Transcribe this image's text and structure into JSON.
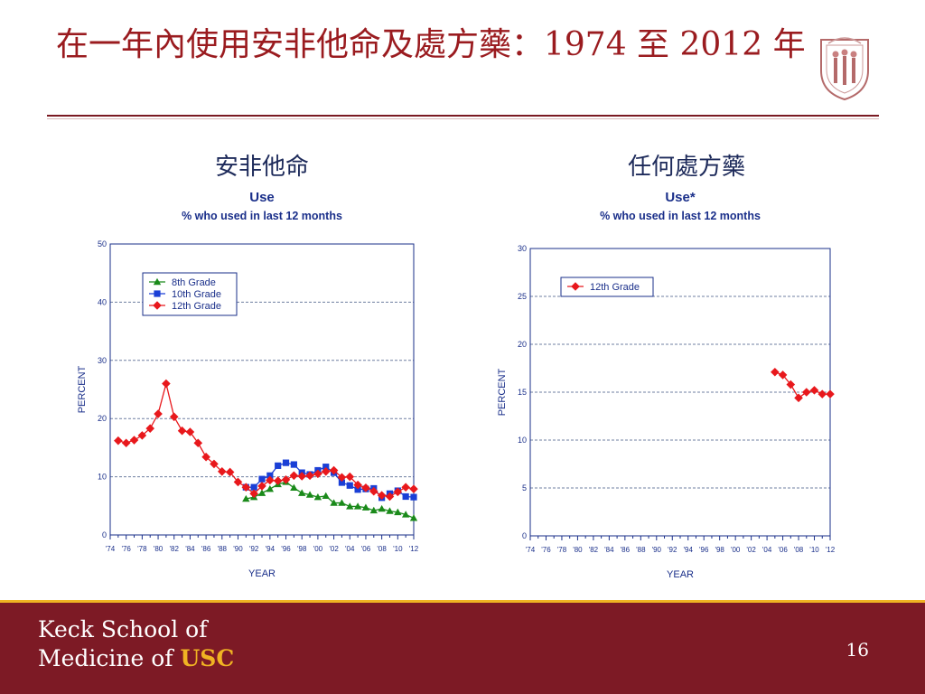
{
  "slide": {
    "title": "在一年內使用安非他命及處方藥：1974 至 2012 年",
    "page_number": "16"
  },
  "footer": {
    "line1": "Keck School of",
    "line2_prefix": "Medicine of ",
    "line2_highlight": "USC"
  },
  "colors": {
    "title": "#9a1b1f",
    "footer_bg": "#7d1a25",
    "footer_accent": "#f0b323",
    "grade8": "#1a8a1a",
    "grade10": "#1a3fd6",
    "grade12": "#e8181c"
  },
  "panels": [
    {
      "heading": "安非他命",
      "icon": "university-seal-icon"
    },
    {
      "heading": "任何處方藥"
    }
  ],
  "chart_data": [
    {
      "type": "line",
      "title": "Use",
      "subtitle": "% who used in last 12 months",
      "xlabel": "YEAR",
      "ylabel": "PERCENT",
      "ylim": [
        0,
        50
      ],
      "yticks": [
        0,
        10,
        20,
        30,
        40,
        50
      ],
      "xlim": [
        1974,
        2012
      ],
      "xtick_labels": [
        "'74",
        "'76",
        "'78",
        "'80",
        "'82",
        "'84",
        "'86",
        "'88",
        "'90",
        "'92",
        "'94",
        "'96",
        "'98",
        "'00",
        "'02",
        "'04",
        "'06",
        "'08",
        "'10",
        "'12"
      ],
      "grid": true,
      "legend_position": "top-left",
      "series": [
        {
          "name": "8th Grade",
          "marker": "triangle",
          "color": "#1a8a1a",
          "x": [
            1991,
            1992,
            1993,
            1994,
            1995,
            1996,
            1997,
            1998,
            1999,
            2000,
            2001,
            2002,
            2003,
            2004,
            2005,
            2006,
            2007,
            2008,
            2009,
            2010,
            2011,
            2012
          ],
          "values": [
            6.2,
            6.5,
            7.2,
            7.9,
            8.7,
            9.1,
            8.1,
            7.2,
            6.9,
            6.5,
            6.7,
            5.5,
            5.5,
            4.9,
            4.9,
            4.7,
            4.2,
            4.5,
            4.1,
            3.9,
            3.5,
            2.9
          ]
        },
        {
          "name": "10th Grade",
          "marker": "square",
          "color": "#1a3fd6",
          "x": [
            1991,
            1992,
            1993,
            1994,
            1995,
            1996,
            1997,
            1998,
            1999,
            2000,
            2001,
            2002,
            2003,
            2004,
            2005,
            2006,
            2007,
            2008,
            2009,
            2010,
            2011,
            2012
          ],
          "values": [
            8.2,
            8.2,
            9.6,
            10.2,
            11.9,
            12.4,
            12.1,
            10.7,
            10.4,
            11.1,
            11.7,
            10.7,
            9.0,
            8.5,
            7.8,
            7.9,
            8.0,
            6.4,
            7.1,
            7.6,
            6.6,
            6.5
          ]
        },
        {
          "name": "12th Grade",
          "marker": "diamond",
          "color": "#e8181c",
          "x": [
            1975,
            1976,
            1977,
            1978,
            1979,
            1980,
            1981,
            1982,
            1983,
            1984,
            1985,
            1986,
            1987,
            1988,
            1989,
            1990,
            1991,
            1992,
            1993,
            1994,
            1995,
            1996,
            1997,
            1998,
            1999,
            2000,
            2001,
            2002,
            2003,
            2004,
            2005,
            2006,
            2007,
            2008,
            2009,
            2010,
            2011,
            2012
          ],
          "values": [
            16.2,
            15.8,
            16.3,
            17.1,
            18.3,
            20.8,
            26.0,
            20.3,
            17.9,
            17.7,
            15.8,
            13.4,
            12.2,
            10.9,
            10.8,
            9.1,
            8.2,
            7.1,
            8.4,
            9.4,
            9.3,
            9.5,
            10.2,
            10.1,
            10.2,
            10.5,
            10.9,
            11.1,
            9.9,
            10.0,
            8.6,
            8.1,
            7.5,
            6.8,
            6.6,
            7.4,
            8.2,
            7.9
          ]
        }
      ]
    },
    {
      "type": "line",
      "title": "Use*",
      "subtitle": "% who used in last 12 months",
      "xlabel": "YEAR",
      "ylabel": "PERCENT",
      "ylim": [
        0,
        30
      ],
      "yticks": [
        0,
        5,
        10,
        15,
        20,
        25,
        30
      ],
      "xlim": [
        1974,
        2012
      ],
      "xtick_labels": [
        "'74",
        "'76",
        "'78",
        "'80",
        "'82",
        "'84",
        "'86",
        "'88",
        "'90",
        "'92",
        "'94",
        "'96",
        "'98",
        "'00",
        "'02",
        "'04",
        "'06",
        "'08",
        "'10",
        "'12"
      ],
      "grid": true,
      "legend_position": "top-left",
      "series": [
        {
          "name": "12th Grade",
          "marker": "diamond",
          "color": "#e8181c",
          "x": [
            2005,
            2006,
            2007,
            2008,
            2009,
            2010,
            2011,
            2012
          ],
          "values": [
            17.1,
            16.8,
            15.8,
            14.4,
            15.0,
            15.2,
            14.8,
            14.8
          ]
        }
      ]
    }
  ]
}
